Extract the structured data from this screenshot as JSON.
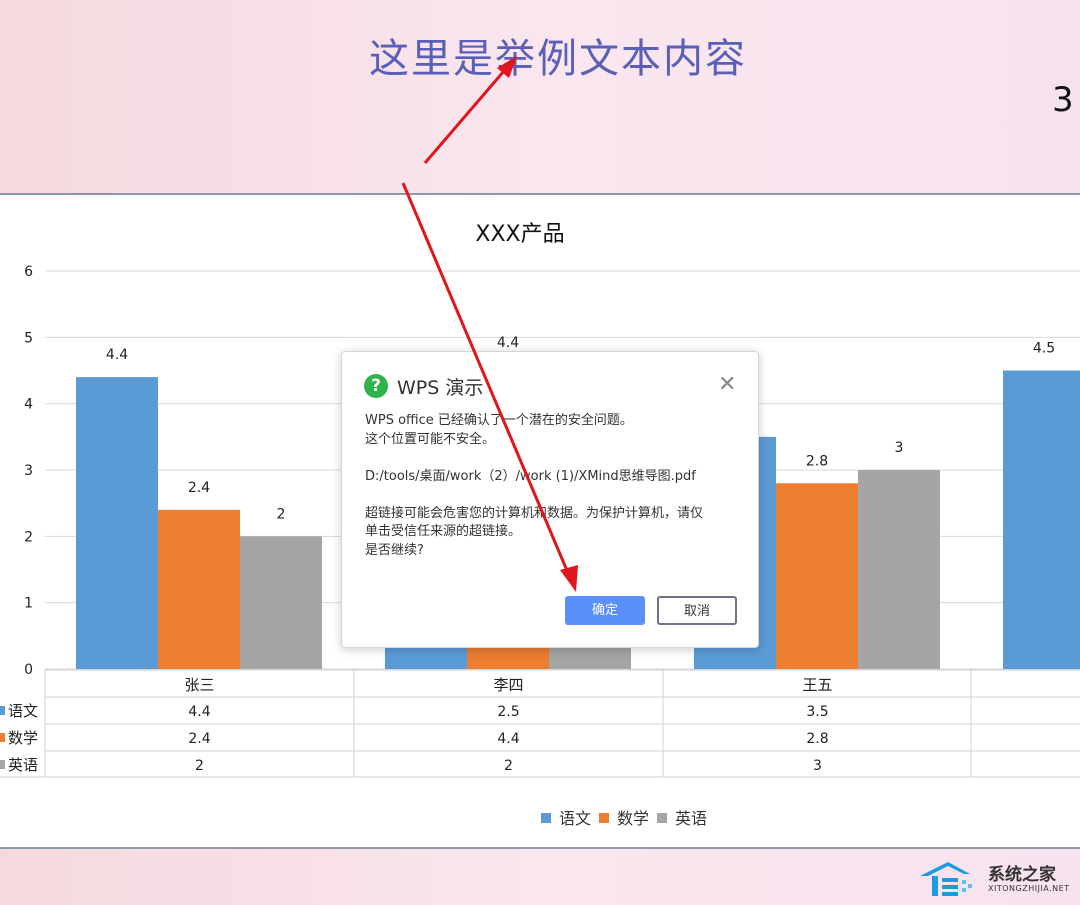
{
  "slide": {
    "title": "这里是举例文本内容",
    "page_number": "3"
  },
  "chart_data": {
    "type": "bar",
    "title": "XXX产品",
    "categories": [
      "张三",
      "李四",
      "王五",
      ""
    ],
    "series": [
      {
        "name": "语文",
        "color": "#5b9bd5",
        "values": [
          4.4,
          2.5,
          3.5,
          4.5
        ]
      },
      {
        "name": "数学",
        "color": "#ed7d31",
        "values": [
          2.4,
          4.4,
          2.8,
          null
        ]
      },
      {
        "name": "英语",
        "color": "#a5a5a5",
        "values": [
          2,
          2,
          3,
          null
        ]
      }
    ],
    "ylim": [
      0,
      6
    ],
    "yticks": [
      0,
      1,
      2,
      3,
      4,
      5,
      6
    ],
    "grid": true,
    "data_table": true,
    "legend": "bottom"
  },
  "dialog": {
    "title": "WPS 演示",
    "icon": "question-icon",
    "lines": [
      "WPS office 已经确认了一个潜在的安全问题。",
      "这个位置可能不安全。",
      "",
      "D:/tools/桌面/work（2）/work (1)/XMind思维导图.pdf",
      "",
      "超链接可能会危害您的计算机和数据。为保护计算机，请仅",
      "单击受信任来源的超链接。",
      "是否继续?"
    ],
    "ok_label": "确定",
    "cancel_label": "取消"
  },
  "watermark": {
    "text": "系统之家",
    "sub": "XITONGZHIJIA.NET"
  },
  "annotation_color": "#e0161c"
}
